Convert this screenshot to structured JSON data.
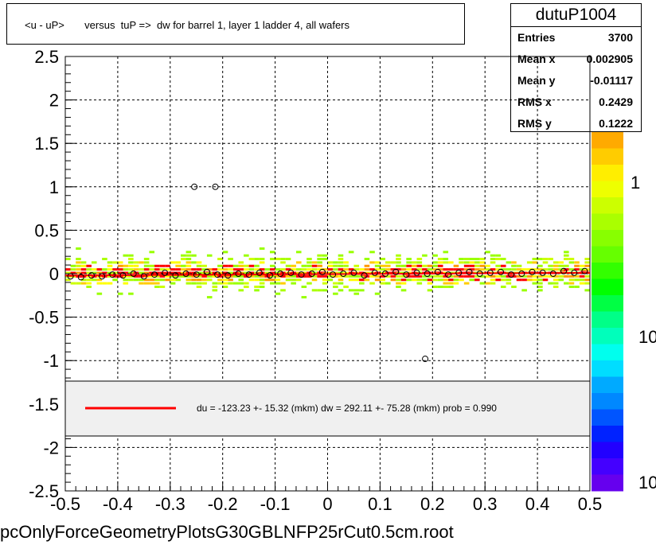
{
  "title": "<u - uP>       versus  tuP =>  dw for barrel 1, layer 1 ladder 4, all wafers",
  "stats": {
    "name": "dutuP1004",
    "rows": [
      {
        "label": "Entries",
        "value": "3700"
      },
      {
        "label": "Mean x",
        "value": "0.002905"
      },
      {
        "label": "Mean y",
        "value": "-0.01117"
      },
      {
        "label": "RMS x",
        "value": "0.2429"
      },
      {
        "label": "RMS y",
        "value": "0.1222"
      }
    ]
  },
  "fit_text": "du = -123.23 +- 15.32 (mkm) dw =  292.11 +- 75.28 (mkm) prob = 0.990",
  "footer": "pcOnlyForceGeometryPlotsG30GBLNFP25rCut0.5cm.root",
  "colors": {
    "fit_line": "#ff0000",
    "profile_marker": "#000000",
    "legend_bg": "#f0f0f0"
  },
  "chart_data": {
    "type": "heatmap",
    "xlim": [
      -0.5,
      0.5
    ],
    "ylim": [
      -2.5,
      2.5
    ],
    "x_ticks": [
      "-0.5",
      "-0.4",
      "-0.3",
      "-0.2",
      "-0.1",
      "0",
      "0.1",
      "0.2",
      "0.3",
      "0.4",
      "0.5"
    ],
    "y_ticks": [
      "2.5",
      "2",
      "1.5",
      "1",
      "0.5",
      "0",
      "-0.5",
      "-1",
      "-1.5",
      "-2",
      "-2.5"
    ],
    "colorbar_labels": [
      "1",
      "10",
      "10"
    ],
    "grid": true,
    "fit_line": {
      "x": [
        -0.5,
        0.5
      ],
      "y": [
        -0.02,
        0.01
      ]
    },
    "outliers": [
      {
        "x": -0.254,
        "y": 1.0
      },
      {
        "x": -0.214,
        "y": 1.0
      },
      {
        "x": 0.186,
        "y": -0.98
      }
    ],
    "profile_points": {
      "x": [
        -0.49,
        -0.47,
        -0.45,
        -0.43,
        -0.41,
        -0.39,
        -0.37,
        -0.35,
        -0.33,
        -0.31,
        -0.29,
        -0.27,
        -0.25,
        -0.23,
        -0.21,
        -0.19,
        -0.17,
        -0.15,
        -0.13,
        -0.11,
        -0.09,
        -0.07,
        -0.05,
        -0.03,
        -0.01,
        0.01,
        0.03,
        0.05,
        0.07,
        0.09,
        0.11,
        0.13,
        0.15,
        0.17,
        0.19,
        0.21,
        0.23,
        0.25,
        0.27,
        0.29,
        0.31,
        0.33,
        0.35,
        0.37,
        0.39,
        0.41,
        0.43,
        0.45,
        0.47,
        0.49
      ],
      "y": [
        -0.03,
        -0.04,
        -0.02,
        -0.03,
        -0.01,
        -0.02,
        0.0,
        -0.03,
        -0.01,
        0.01,
        -0.02,
        0.0,
        -0.01,
        0.02,
        -0.01,
        -0.02,
        0.0,
        -0.01,
        0.01,
        -0.02,
        0.0,
        0.01,
        -0.01,
        0.0,
        0.02,
        -0.01,
        0.0,
        0.01,
        -0.02,
        0.01,
        0.0,
        0.02,
        -0.01,
        0.01,
        0.0,
        0.02,
        -0.01,
        0.01,
        0.02,
        0.0,
        0.01,
        0.02,
        -0.01,
        0.0,
        0.02,
        0.01,
        0.0,
        0.03,
        0.01,
        0.03
      ]
    }
  }
}
